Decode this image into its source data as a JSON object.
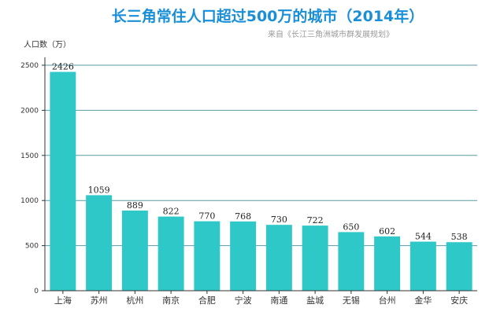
{
  "chart_data": {
    "type": "bar",
    "title": "长三角常住人口超过500万的城市（2014年）",
    "subtitle": "来自《长江三角洲城市群发展规划》",
    "ylabel": "人口数（万）",
    "xlabel": "",
    "ylim": [
      0,
      2500
    ],
    "yticks": [
      0,
      500,
      1000,
      1500,
      2000,
      2500
    ],
    "grid": true,
    "categories": [
      "上海",
      "苏州",
      "杭州",
      "南京",
      "合肥",
      "宁波",
      "南通",
      "盐城",
      "无锡",
      "台州",
      "金华",
      "安庆"
    ],
    "values": [
      2426,
      1059,
      889,
      822,
      770,
      768,
      730,
      722,
      650,
      602,
      544,
      538
    ],
    "value_labels": [
      "2426",
      "1059",
      "889",
      "822",
      "770",
      "768",
      "730",
      "722",
      "650",
      "602",
      "544",
      "538"
    ],
    "bar_color": "#2ec8c8",
    "grid_color": "#5b9aa0"
  }
}
